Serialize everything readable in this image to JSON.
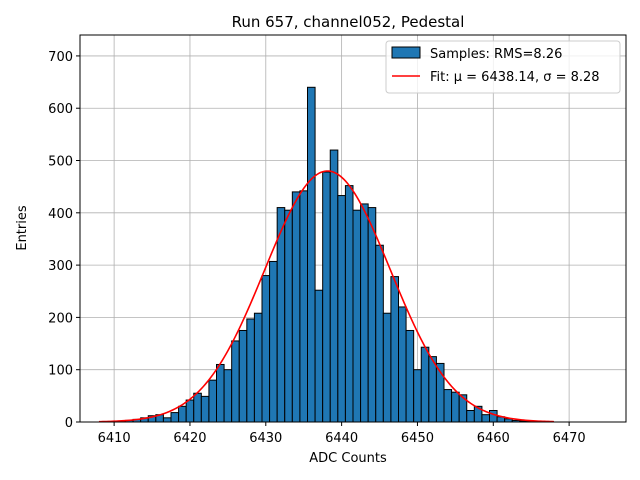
{
  "chart_data": {
    "type": "bar",
    "title": "Run 657, channel052, Pedestal",
    "xlabel": "ADC Counts",
    "ylabel": "Entries",
    "xlim": [
      6405.5,
      6477.5
    ],
    "ylim": [
      0,
      740
    ],
    "xticks": [
      6410,
      6420,
      6430,
      6440,
      6450,
      6460,
      6470
    ],
    "yticks": [
      0,
      100,
      200,
      300,
      400,
      500,
      600,
      700
    ],
    "grid": true,
    "legend_position": "top-right",
    "colors": {
      "bar_fill": "#1f77b4",
      "bar_edge": "#000000",
      "fit_line": "#ff0000",
      "grid": "#b0b0b0"
    },
    "histogram": {
      "name": "Samples: RMS=8.26",
      "bin_width": 1,
      "bin_centers": [
        6409,
        6410,
        6411,
        6412,
        6413,
        6414,
        6415,
        6416,
        6417,
        6418,
        6419,
        6420,
        6421,
        6422,
        6423,
        6424,
        6425,
        6426,
        6427,
        6428,
        6429,
        6430,
        6431,
        6432,
        6433,
        6434,
        6435,
        6436,
        6437,
        6438,
        6439,
        6440,
        6441,
        6442,
        6443,
        6444,
        6445,
        6446,
        6447,
        6448,
        6449,
        6450,
        6451,
        6452,
        6453,
        6454,
        6455,
        6456,
        6457,
        6458,
        6459,
        6460,
        6461,
        6462,
        6463,
        6464,
        6465,
        6466
      ],
      "values": [
        1,
        1,
        2,
        3,
        5,
        8,
        12,
        14,
        8,
        18,
        30,
        42,
        55,
        49,
        80,
        110,
        100,
        155,
        175,
        197,
        208,
        280,
        307,
        410,
        405,
        440,
        442,
        640,
        252,
        478,
        520,
        433,
        452,
        405,
        417,
        410,
        338,
        208,
        278,
        220,
        175,
        100,
        143,
        125,
        112,
        62,
        57,
        52,
        22,
        30,
        14,
        22,
        10,
        6,
        3,
        2,
        1,
        1
      ]
    },
    "fit": {
      "name": "Fit: μ = 6438.14, σ = 8.28",
      "mu": 6438.14,
      "sigma": 8.28,
      "amplitude": 480,
      "x_range": [
        6408,
        6468
      ]
    }
  }
}
